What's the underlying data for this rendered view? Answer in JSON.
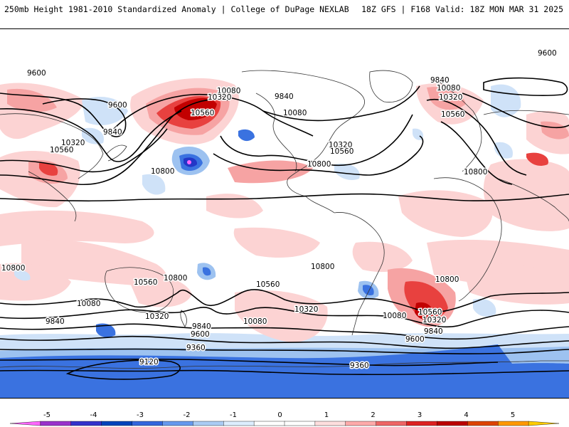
{
  "header": {
    "left_title": "250mb Height 1981-2010 Standardized Anomaly | College of DuPage NEXLAB",
    "right_title": "18Z GFS | F168 Valid: 18Z MON MAR 31 2025"
  },
  "contour_labels": [
    {
      "id": "l1",
      "text": "9600"
    },
    {
      "id": "l2",
      "text": "9600"
    },
    {
      "id": "l3",
      "text": "9840"
    },
    {
      "id": "l4",
      "text": "10320"
    },
    {
      "id": "l5",
      "text": "10560"
    },
    {
      "id": "l6",
      "text": "10800"
    },
    {
      "id": "l7",
      "text": "10080"
    },
    {
      "id": "l8",
      "text": "10320"
    },
    {
      "id": "l9",
      "text": "10560"
    },
    {
      "id": "l10",
      "text": "9840"
    },
    {
      "id": "l11",
      "text": "10080"
    },
    {
      "id": "l12",
      "text": "10800"
    },
    {
      "id": "l13",
      "text": "10320"
    },
    {
      "id": "l14",
      "text": "10560"
    },
    {
      "id": "l15",
      "text": "9840"
    },
    {
      "id": "l16",
      "text": "10080"
    },
    {
      "id": "l17",
      "text": "10320"
    },
    {
      "id": "l18",
      "text": "10560"
    },
    {
      "id": "l19",
      "text": "10800"
    },
    {
      "id": "l20",
      "text": "9600"
    },
    {
      "id": "l21",
      "text": "10800"
    },
    {
      "id": "l22",
      "text": "10800"
    },
    {
      "id": "l23",
      "text": "10560"
    },
    {
      "id": "l24",
      "text": "10080"
    },
    {
      "id": "l25",
      "text": "10320"
    },
    {
      "id": "l26",
      "text": "9840"
    },
    {
      "id": "l27",
      "text": "9600"
    },
    {
      "id": "l28",
      "text": "10080"
    },
    {
      "id": "l29",
      "text": "9840"
    },
    {
      "id": "l30",
      "text": "9600"
    },
    {
      "id": "l31",
      "text": "9360"
    },
    {
      "id": "l32",
      "text": "9120"
    },
    {
      "id": "l33",
      "text": "10560"
    },
    {
      "id": "l34",
      "text": "10800"
    },
    {
      "id": "l35",
      "text": "10320"
    },
    {
      "id": "l36",
      "text": "10080"
    },
    {
      "id": "l37",
      "text": "10560"
    },
    {
      "id": "l38",
      "text": "10320"
    },
    {
      "id": "l39",
      "text": "10800"
    },
    {
      "id": "l40",
      "text": "9840"
    },
    {
      "id": "l41",
      "text": "9600"
    },
    {
      "id": "l42",
      "text": "9360"
    }
  ],
  "colorbar": {
    "tick_labels": [
      "-5",
      "-4",
      "-3",
      "-2",
      "-1",
      "0",
      "1",
      "2",
      "3",
      "4",
      "5"
    ],
    "colors": [
      "#ff66ff",
      "#9933cc",
      "#3333cc",
      "#0044bb",
      "#3366dd",
      "#6699ee",
      "#aaccf4",
      "#ddeeff",
      "#ffffff",
      "#ffffff",
      "#ffdede",
      "#ffaaaa",
      "#ee6666",
      "#dd2222",
      "#bb0000",
      "#dd4400",
      "#ff9900",
      "#ffcc00"
    ]
  },
  "colors": {
    "pos_light": "#fcd3d3",
    "pos_med": "#f6a3a3",
    "pos_strong": "#e8413f",
    "pos_max": "#c20000",
    "neg_light": "#cfe2f8",
    "neg_med": "#9dc2f0",
    "neg_strong": "#3a72e0",
    "neg_max": "#2337c7",
    "land_line": "#333333",
    "contour": "#000000"
  }
}
